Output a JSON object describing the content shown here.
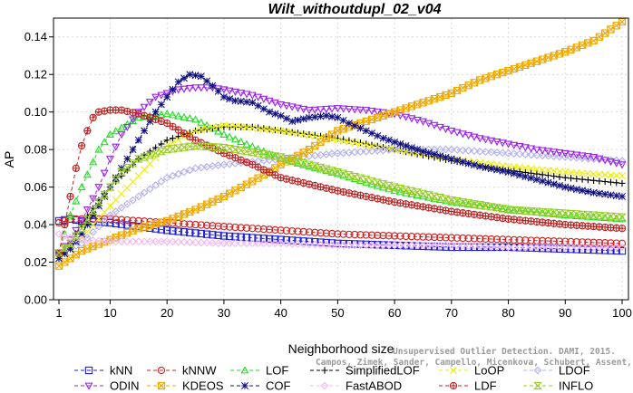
{
  "chart_data": {
    "type": "line",
    "title": "Wilt_withoutdupl_02_v04",
    "xlabel": "Neighborhood size",
    "ylabel": "AP",
    "xlim": [
      1,
      100
    ],
    "ylim": [
      0,
      0.15
    ],
    "xticks": [
      "1",
      "10",
      "20",
      "30",
      "40",
      "50",
      "60",
      "70",
      "80",
      "90",
      "100"
    ],
    "yticks": [
      "0.00",
      "0.02",
      "0.04",
      "0.06",
      "0.08",
      "0.10",
      "0.12",
      "0.14"
    ],
    "credit_lines": [
      "Unsupervised Outlier Detection. DAMI, 2015.",
      "Campos, Zimek, Sander, Campello, Micenkova, Schubert, Assent, Houle"
    ],
    "legend_position": "bottom",
    "series": [
      {
        "name": "kNN",
        "color": "#1f1fd6",
        "marker": "square",
        "x": [
          1,
          3,
          5,
          10,
          20,
          30,
          40,
          50,
          60,
          70,
          80,
          90,
          100
        ],
        "y": [
          0.042,
          0.043,
          0.042,
          0.041,
          0.037,
          0.034,
          0.032,
          0.03,
          0.029,
          0.028,
          0.028,
          0.027,
          0.026
        ]
      },
      {
        "name": "kNNW",
        "color": "#d21f1f",
        "marker": "circle",
        "x": [
          1,
          3,
          5,
          10,
          20,
          30,
          40,
          50,
          60,
          70,
          80,
          90,
          100
        ],
        "y": [
          0.041,
          0.043,
          0.043,
          0.043,
          0.041,
          0.039,
          0.037,
          0.035,
          0.034,
          0.033,
          0.032,
          0.031,
          0.03
        ]
      },
      {
        "name": "LOF",
        "color": "#22dd22",
        "marker": "triangle-up",
        "x": [
          1,
          3,
          5,
          8,
          10,
          15,
          20,
          25,
          30,
          40,
          50,
          60,
          70,
          80,
          90,
          100
        ],
        "y": [
          0.025,
          0.045,
          0.06,
          0.08,
          0.088,
          0.097,
          0.099,
          0.096,
          0.088,
          0.075,
          0.067,
          0.058,
          0.052,
          0.048,
          0.045,
          0.043
        ]
      },
      {
        "name": "SimplifiedLOF",
        "color": "#000000",
        "marker": "plus",
        "x": [
          1,
          3,
          5,
          8,
          10,
          15,
          20,
          25,
          30,
          35,
          40,
          50,
          60,
          70,
          80,
          90,
          100
        ],
        "y": [
          0.022,
          0.03,
          0.04,
          0.053,
          0.06,
          0.075,
          0.085,
          0.09,
          0.092,
          0.092,
          0.09,
          0.086,
          0.08,
          0.074,
          0.069,
          0.065,
          0.062
        ]
      },
      {
        "name": "LoOP",
        "color": "#eeee00",
        "marker": "cross",
        "x": [
          1,
          3,
          5,
          10,
          15,
          20,
          25,
          30,
          40,
          50,
          60,
          70,
          80,
          90,
          100
        ],
        "y": [
          0.025,
          0.028,
          0.033,
          0.05,
          0.066,
          0.082,
          0.09,
          0.093,
          0.09,
          0.085,
          0.08,
          0.075,
          0.071,
          0.068,
          0.066
        ]
      },
      {
        "name": "LDOF",
        "color": "#b0b0f0",
        "marker": "diamond",
        "x": [
          1,
          5,
          10,
          15,
          20,
          25,
          30,
          40,
          50,
          60,
          70,
          80,
          90,
          100
        ],
        "y": [
          0.025,
          0.03,
          0.045,
          0.055,
          0.065,
          0.07,
          0.072,
          0.075,
          0.078,
          0.08,
          0.08,
          0.078,
          0.076,
          0.074
        ]
      },
      {
        "name": "ODIN",
        "color": "#9a22ee",
        "marker": "triangle-down",
        "x": [
          1,
          3,
          5,
          8,
          10,
          12,
          15,
          18,
          20,
          22,
          25,
          28,
          30,
          35,
          40,
          45,
          50,
          55,
          60,
          65,
          70,
          75,
          80,
          85,
          90,
          95,
          100
        ],
        "y": [
          0.025,
          0.032,
          0.042,
          0.06,
          0.075,
          0.088,
          0.1,
          0.108,
          0.11,
          0.112,
          0.113,
          0.113,
          0.112,
          0.109,
          0.104,
          0.101,
          0.102,
          0.101,
          0.099,
          0.095,
          0.09,
          0.086,
          0.083,
          0.08,
          0.078,
          0.076,
          0.072
        ]
      },
      {
        "name": "KDEOS",
        "color": "#f0a800",
        "marker": "square-x",
        "x": [
          1,
          5,
          10,
          15,
          20,
          25,
          30,
          35,
          40,
          45,
          50,
          55,
          60,
          65,
          70,
          75,
          80,
          85,
          90,
          95,
          100
        ],
        "y": [
          0.018,
          0.026,
          0.032,
          0.038,
          0.042,
          0.048,
          0.055,
          0.063,
          0.072,
          0.08,
          0.09,
          0.095,
          0.1,
          0.105,
          0.11,
          0.117,
          0.122,
          0.127,
          0.132,
          0.138,
          0.148
        ]
      },
      {
        "name": "COF",
        "color": "#101080",
        "marker": "asterisk",
        "x": [
          1,
          3,
          5,
          8,
          10,
          12,
          15,
          18,
          20,
          22,
          24,
          26,
          28,
          30,
          32,
          35,
          38,
          40,
          42,
          45,
          48,
          50,
          52,
          55,
          58,
          60,
          65,
          70,
          75,
          80,
          85,
          90,
          95,
          100
        ],
        "y": [
          0.022,
          0.027,
          0.035,
          0.05,
          0.06,
          0.07,
          0.085,
          0.1,
          0.108,
          0.116,
          0.12,
          0.119,
          0.114,
          0.108,
          0.106,
          0.105,
          0.1,
          0.098,
          0.095,
          0.097,
          0.098,
          0.097,
          0.094,
          0.09,
          0.086,
          0.084,
          0.079,
          0.075,
          0.071,
          0.068,
          0.064,
          0.06,
          0.057,
          0.055
        ]
      },
      {
        "name": "FastABOD",
        "color": "#f2b8f2",
        "marker": "diamond",
        "x": [
          1,
          3,
          5,
          10,
          20,
          30,
          40,
          50,
          60,
          70,
          80,
          90,
          100
        ],
        "y": [
          0.035,
          0.033,
          0.032,
          0.031,
          0.031,
          0.03,
          0.03,
          0.029,
          0.029,
          0.029,
          0.028,
          0.028,
          0.028
        ]
      },
      {
        "name": "LDF",
        "color": "#bb2222",
        "marker": "circle-plus",
        "x": [
          1,
          2,
          3,
          4,
          5,
          6,
          7,
          8,
          10,
          12,
          15,
          20,
          25,
          30,
          35,
          40,
          50,
          60,
          70,
          80,
          90,
          100
        ],
        "y": [
          0.025,
          0.04,
          0.055,
          0.07,
          0.082,
          0.09,
          0.097,
          0.1,
          0.101,
          0.101,
          0.099,
          0.094,
          0.085,
          0.078,
          0.072,
          0.065,
          0.058,
          0.052,
          0.047,
          0.043,
          0.04,
          0.038
        ]
      },
      {
        "name": "INFLO",
        "color": "#99cc22",
        "marker": "hourglass",
        "x": [
          1,
          3,
          5,
          8,
          10,
          12,
          15,
          18,
          20,
          25,
          30,
          40,
          50,
          60,
          70,
          80,
          90,
          100
        ],
        "y": [
          0.025,
          0.03,
          0.038,
          0.052,
          0.06,
          0.068,
          0.075,
          0.078,
          0.08,
          0.082,
          0.081,
          0.076,
          0.068,
          0.06,
          0.053,
          0.048,
          0.046,
          0.044
        ]
      }
    ]
  }
}
